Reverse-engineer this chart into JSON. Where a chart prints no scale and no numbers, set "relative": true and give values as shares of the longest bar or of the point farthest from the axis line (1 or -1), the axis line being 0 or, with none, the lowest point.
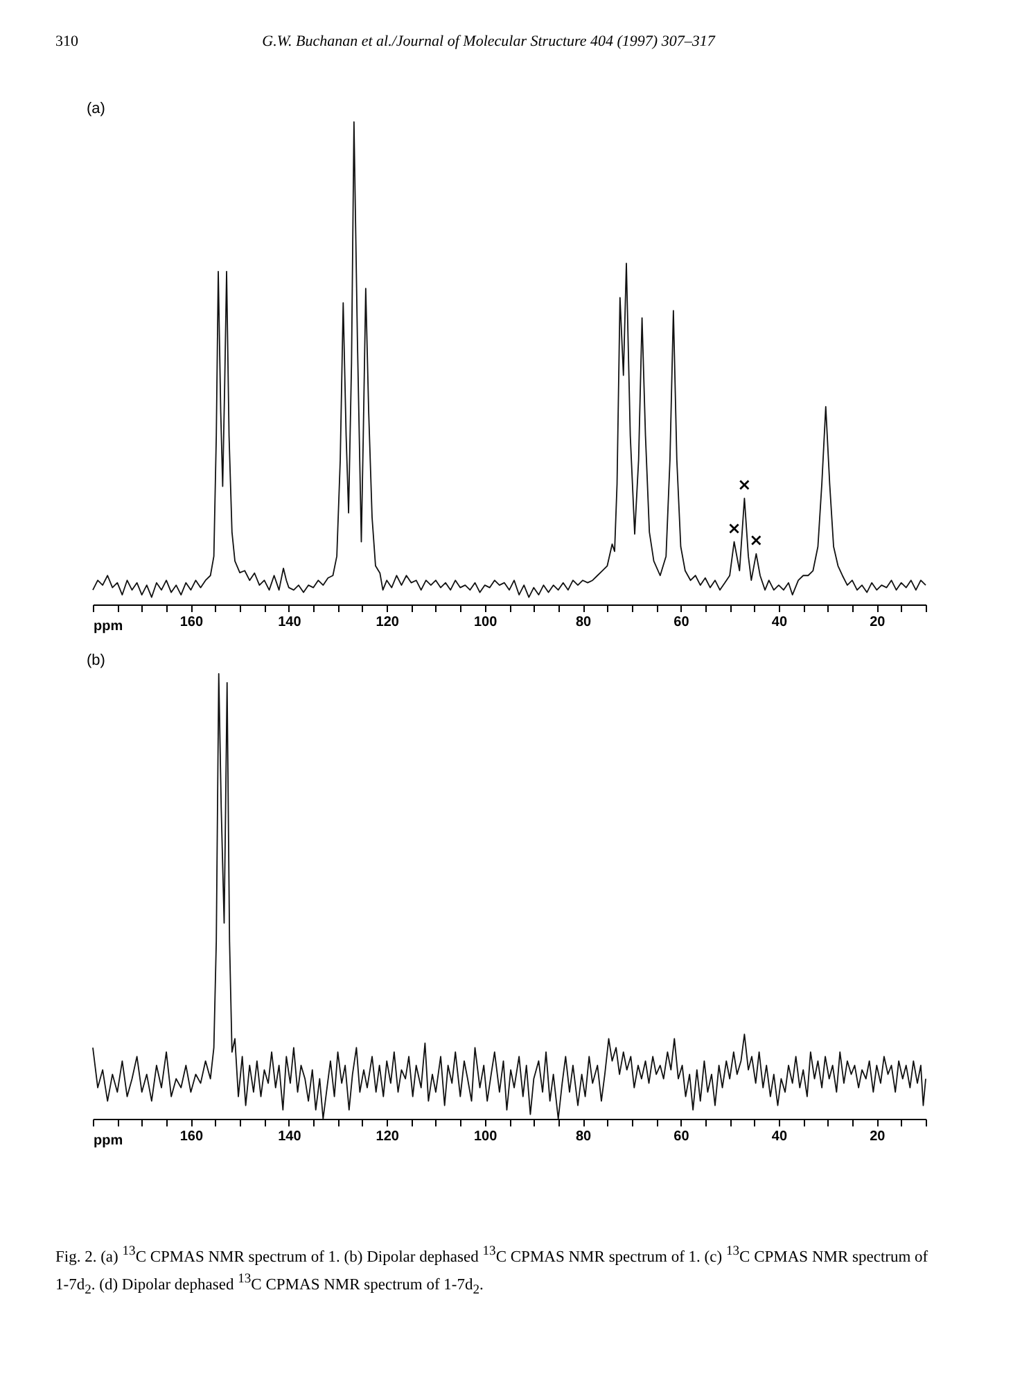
{
  "chart_data": [
    {
      "type": "line",
      "title": "(a)",
      "xlabel": "ppm",
      "relative": true,
      "grid": false,
      "xlim": [
        180,
        10
      ],
      "xticks": [
        {
          "value": 180,
          "label": null
        },
        {
          "value": 175,
          "label": null
        },
        {
          "value": 170,
          "label": null
        },
        {
          "value": 165,
          "label": null
        },
        160,
        {
          "value": 155,
          "label": null
        },
        {
          "value": 150,
          "label": null
        },
        {
          "value": 145,
          "label": null
        },
        140,
        {
          "value": 135,
          "label": null
        },
        {
          "value": 130,
          "label": null
        },
        {
          "value": 125,
          "label": null
        },
        120,
        {
          "value": 115,
          "label": null
        },
        {
          "value": 110,
          "label": null
        },
        {
          "value": 105,
          "label": null
        },
        100,
        {
          "value": 95,
          "label": null
        },
        {
          "value": 90,
          "label": null
        },
        {
          "value": 85,
          "label": null
        },
        80,
        {
          "value": 75,
          "label": null
        },
        {
          "value": 70,
          "label": null
        },
        {
          "value": 65,
          "label": null
        },
        60,
        {
          "value": 55,
          "label": null
        },
        {
          "value": 50,
          "label": null
        },
        {
          "value": 45,
          "label": null
        },
        40,
        {
          "value": 35,
          "label": null
        },
        {
          "value": 30,
          "label": null
        },
        {
          "value": 25,
          "label": null
        },
        20,
        {
          "value": 15,
          "label": null
        },
        {
          "value": 10,
          "label": null
        }
      ],
      "annotations": [
        "310",
        "G.W. Buchanan et al./Journal of Molecular Structure 404 (1997) 307–317",
        {
          "text": "×",
          "x": 49.1,
          "y": 0.13
        },
        {
          "text": "×",
          "x": 47,
          "y": 0.22
        },
        {
          "text": "×",
          "x": 44.6,
          "y": 0.105
        }
      ],
      "x": [
        180,
        179,
        178,
        177,
        176,
        175,
        174,
        173,
        172,
        171,
        170,
        169,
        168,
        167,
        166,
        165,
        164,
        163,
        162,
        161,
        160,
        159,
        158,
        157,
        156,
        155.3,
        154.8,
        154.4,
        153.9,
        153.5,
        153.1,
        152.7,
        152.2,
        151.6,
        151,
        150,
        149,
        148,
        147,
        146,
        145,
        144,
        143,
        142,
        141.1,
        140.5,
        140,
        139,
        138,
        137,
        136,
        135,
        134,
        133,
        132,
        131,
        130.2,
        129.5,
        128.9,
        128.3,
        127.8,
        127.2,
        126.7,
        126,
        125.2,
        124.8,
        124.3,
        123.7,
        123,
        122.3,
        121.4,
        120.8,
        120,
        119,
        118,
        117,
        116,
        115,
        114,
        113,
        112,
        111,
        110,
        109,
        108,
        107,
        106,
        105,
        104,
        103,
        102,
        101,
        100,
        99,
        98,
        97,
        96,
        95,
        94,
        93,
        92,
        91,
        90,
        89,
        88,
        87,
        86,
        85,
        84,
        83,
        82,
        81,
        80,
        79,
        78,
        77,
        76,
        75,
        74,
        73.5,
        73,
        72.4,
        71.7,
        71.1,
        70.3,
        69.4,
        68.6,
        67.9,
        67.2,
        66.4,
        65.5,
        64.2,
        63,
        62.2,
        61.5,
        60.8,
        60,
        59.1,
        58,
        57,
        56,
        55,
        54,
        53,
        52,
        51,
        50,
        49.1,
        48,
        47,
        46.2,
        45.6,
        44.6,
        43.8,
        42.8,
        42,
        41,
        40,
        39,
        38,
        37.2,
        36,
        35,
        34,
        33,
        32,
        31.2,
        30.4,
        29.6,
        28.8,
        27.9,
        27,
        26,
        25,
        24,
        23,
        22,
        21,
        20,
        19,
        18,
        17,
        16,
        15,
        14,
        13,
        12,
        11,
        10
      ],
      "series": [
        {
          "color": "#111111",
          "values": [
            0.03,
            0.05,
            0.04,
            0.06,
            0.035,
            0.045,
            0.02,
            0.05,
            0.03,
            0.045,
            0.02,
            0.04,
            0.015,
            0.045,
            0.03,
            0.05,
            0.025,
            0.04,
            0.02,
            0.045,
            0.03,
            0.05,
            0.035,
            0.05,
            0.06,
            0.1,
            0.35,
            0.69,
            0.4,
            0.245,
            0.45,
            0.69,
            0.35,
            0.15,
            0.09,
            0.066,
            0.07,
            0.05,
            0.065,
            0.04,
            0.05,
            0.03,
            0.06,
            0.03,
            0.075,
            0.05,
            0.035,
            0.03,
            0.04,
            0.025,
            0.04,
            0.035,
            0.05,
            0.04,
            0.055,
            0.06,
            0.1,
            0.3,
            0.625,
            0.35,
            0.19,
            0.5,
            1.0,
            0.55,
            0.13,
            0.35,
            0.655,
            0.4,
            0.18,
            0.08,
            0.065,
            0.03,
            0.05,
            0.035,
            0.06,
            0.04,
            0.06,
            0.045,
            0.05,
            0.03,
            0.05,
            0.04,
            0.05,
            0.035,
            0.045,
            0.03,
            0.05,
            0.035,
            0.04,
            0.03,
            0.045,
            0.025,
            0.04,
            0.035,
            0.05,
            0.04,
            0.045,
            0.03,
            0.05,
            0.02,
            0.04,
            0.015,
            0.035,
            0.02,
            0.04,
            0.025,
            0.04,
            0.03,
            0.045,
            0.03,
            0.05,
            0.04,
            0.05,
            0.045,
            0.05,
            0.06,
            0.07,
            0.08,
            0.125,
            0.11,
            0.25,
            0.636,
            0.475,
            0.707,
            0.35,
            0.146,
            0.3,
            0.594,
            0.35,
            0.15,
            0.09,
            0.06,
            0.1,
            0.3,
            0.609,
            0.3,
            0.12,
            0.07,
            0.05,
            0.06,
            0.04,
            0.055,
            0.035,
            0.05,
            0.03,
            0.045,
            0.06,
            0.13,
            0.07,
            0.22,
            0.1,
            0.05,
            0.105,
            0.06,
            0.03,
            0.05,
            0.03,
            0.04,
            0.03,
            0.045,
            0.02,
            0.05,
            0.06,
            0.06,
            0.07,
            0.12,
            0.25,
            0.41,
            0.25,
            0.12,
            0.08,
            0.06,
            0.04,
            0.05,
            0.03,
            0.04,
            0.025,
            0.045,
            0.03,
            0.04,
            0.035,
            0.05,
            0.03,
            0.045,
            0.035,
            0.05,
            0.03,
            0.05,
            0.04
          ]
        }
      ]
    },
    {
      "type": "line",
      "title": "(b)",
      "xlabel": "ppm",
      "relative": true,
      "grid": false,
      "xlim": [
        180,
        10
      ],
      "xticks": [
        {
          "value": 180,
          "label": null
        },
        {
          "value": 175,
          "label": null
        },
        {
          "value": 170,
          "label": null
        },
        {
          "value": 165,
          "label": null
        },
        160,
        {
          "value": 155,
          "label": null
        },
        {
          "value": 150,
          "label": null
        },
        {
          "value": 145,
          "label": null
        },
        140,
        {
          "value": 135,
          "label": null
        },
        {
          "value": 130,
          "label": null
        },
        {
          "value": 125,
          "label": null
        },
        120,
        {
          "value": 115,
          "label": null
        },
        {
          "value": 110,
          "label": null
        },
        {
          "value": 105,
          "label": null
        },
        100,
        {
          "value": 95,
          "label": null
        },
        {
          "value": 90,
          "label": null
        },
        {
          "value": 85,
          "label": null
        },
        80,
        {
          "value": 75,
          "label": null
        },
        {
          "value": 70,
          "label": null
        },
        {
          "value": 65,
          "label": null
        },
        60,
        {
          "value": 55,
          "label": null
        },
        {
          "value": 50,
          "label": null
        },
        {
          "value": 45,
          "label": null
        },
        40,
        {
          "value": 35,
          "label": null
        },
        {
          "value": 30,
          "label": null
        },
        {
          "value": 25,
          "label": null
        },
        20,
        {
          "value": 15,
          "label": null
        },
        {
          "value": 10,
          "label": null
        }
      ],
      "annotations": [
        "Fig. 2. (a) $^{13}$C CPMAS NMR spectrum of 1. (b) Dipolar dephased $^{13}$C CPMAS NMR spectrum of 1. (c) $^{13}$C CPMAS NMR spectrum of 1-7d$_{2}$. (d) Dipolar dephased $^{13}$C CPMAS NMR spectrum of 1-7d$_{2}$."
      ],
      "x": [
        180,
        179,
        178,
        177,
        176,
        175,
        174,
        173,
        172,
        171,
        170,
        169,
        168,
        167,
        166,
        165,
        164,
        163,
        162,
        161,
        160,
        159,
        158,
        157,
        156,
        155.3,
        154.8,
        154.3,
        153.8,
        153.2,
        152.9,
        152.6,
        152.1,
        151.6,
        151,
        150.3,
        149.5,
        148.8,
        148,
        147.2,
        146.5,
        145.7,
        145,
        144.2,
        143.5,
        142.7,
        142,
        141.2,
        140.5,
        139.7,
        139,
        138.2,
        137.5,
        136.7,
        136,
        135.2,
        134.5,
        133.7,
        133,
        132.2,
        131.5,
        130.7,
        130,
        129.2,
        128.5,
        127.7,
        127,
        126.2,
        125.5,
        124.7,
        124,
        123,
        122.2,
        121.5,
        120.7,
        120,
        119.2,
        118.5,
        117.7,
        117,
        116.2,
        115.5,
        114.7,
        114,
        113,
        112.2,
        111.5,
        110.7,
        110,
        109,
        108.2,
        107.5,
        106.7,
        106,
        105,
        104.2,
        103.5,
        102.7,
        102,
        101,
        100.2,
        99.5,
        98.7,
        98,
        97,
        96.2,
        95.5,
        94.7,
        94,
        93,
        92.2,
        91.5,
        90.7,
        90,
        89,
        88.2,
        87.5,
        86.7,
        86,
        85,
        84.2,
        83.5,
        82.7,
        82,
        81,
        80.2,
        79.5,
        78.7,
        78,
        77,
        76.2,
        75.5,
        74.7,
        74,
        73.2,
        72.5,
        71.7,
        71,
        70.2,
        69.5,
        68.7,
        68,
        67.2,
        66.5,
        65.7,
        65,
        64.2,
        63.5,
        62.7,
        62,
        61.3,
        60.5,
        59.7,
        59,
        58.2,
        57.5,
        56.7,
        56,
        55.2,
        54.5,
        53.7,
        53,
        52.2,
        51.5,
        50.7,
        50,
        49.2,
        48.5,
        47.7,
        47,
        46.2,
        45.5,
        44.7,
        44,
        43.2,
        42.5,
        41.7,
        41,
        40.2,
        39.5,
        38.7,
        38,
        37.2,
        36.5,
        35.7,
        35,
        34.2,
        33.5,
        32.7,
        32,
        31.2,
        30.5,
        29.7,
        29,
        28.2,
        27.5,
        26.7,
        26,
        25.2,
        24.5,
        23.7,
        23,
        22.2,
        21.5,
        20.7,
        20,
        19.2,
        18.5,
        17.7,
        17,
        16.2,
        15.5,
        14.7,
        14,
        13.2,
        12.5,
        11.7,
        11,
        10.5,
        10
      ],
      "series": [
        {
          "color": "#111111",
          "values": [
            0.16,
            0.07,
            0.11,
            0.04,
            0.1,
            0.06,
            0.13,
            0.05,
            0.09,
            0.14,
            0.06,
            0.1,
            0.04,
            0.12,
            0.07,
            0.15,
            0.05,
            0.09,
            0.07,
            0.12,
            0.06,
            0.1,
            0.08,
            0.13,
            0.09,
            0.16,
            0.4,
            1.0,
            0.7,
            0.44,
            0.7,
            0.98,
            0.4,
            0.15,
            0.18,
            0.05,
            0.14,
            0.03,
            0.12,
            0.06,
            0.13,
            0.05,
            0.11,
            0.08,
            0.15,
            0.07,
            0.12,
            0.02,
            0.14,
            0.08,
            0.16,
            0.06,
            0.12,
            0.09,
            0.04,
            0.11,
            0.02,
            0.09,
            0.0,
            0.07,
            0.13,
            0.05,
            0.15,
            0.08,
            0.12,
            0.02,
            0.1,
            0.16,
            0.06,
            0.11,
            0.07,
            0.14,
            0.06,
            0.12,
            0.05,
            0.13,
            0.08,
            0.15,
            0.06,
            0.11,
            0.09,
            0.14,
            0.05,
            0.12,
            0.07,
            0.17,
            0.04,
            0.1,
            0.06,
            0.14,
            0.03,
            0.12,
            0.08,
            0.15,
            0.05,
            0.13,
            0.09,
            0.04,
            0.16,
            0.07,
            0.12,
            0.04,
            0.1,
            0.15,
            0.06,
            0.13,
            0.02,
            0.11,
            0.07,
            0.14,
            0.05,
            0.12,
            0.01,
            0.09,
            0.13,
            0.06,
            0.15,
            0.04,
            0.1,
            0.0,
            0.08,
            0.14,
            0.06,
            0.12,
            0.03,
            0.1,
            0.05,
            0.14,
            0.08,
            0.12,
            0.04,
            0.1,
            0.18,
            0.13,
            0.16,
            0.1,
            0.15,
            0.11,
            0.14,
            0.07,
            0.12,
            0.09,
            0.13,
            0.08,
            0.14,
            0.1,
            0.12,
            0.09,
            0.15,
            0.11,
            0.18,
            0.09,
            0.12,
            0.05,
            0.1,
            0.02,
            0.11,
            0.04,
            0.13,
            0.06,
            0.1,
            0.03,
            0.12,
            0.07,
            0.13,
            0.09,
            0.15,
            0.1,
            0.13,
            0.19,
            0.11,
            0.14,
            0.08,
            0.15,
            0.07,
            0.12,
            0.05,
            0.1,
            0.03,
            0.09,
            0.06,
            0.12,
            0.08,
            0.14,
            0.07,
            0.11,
            0.05,
            0.15,
            0.09,
            0.13,
            0.07,
            0.14,
            0.09,
            0.12,
            0.06,
            0.15,
            0.08,
            0.13,
            0.1,
            0.12,
            0.07,
            0.11,
            0.09,
            0.13,
            0.06,
            0.12,
            0.08,
            0.14,
            0.1,
            0.12,
            0.06,
            0.13,
            0.09,
            0.12,
            0.07,
            0.13,
            0.08,
            0.12,
            0.03,
            0.09
          ]
        }
      ]
    }
  ]
}
